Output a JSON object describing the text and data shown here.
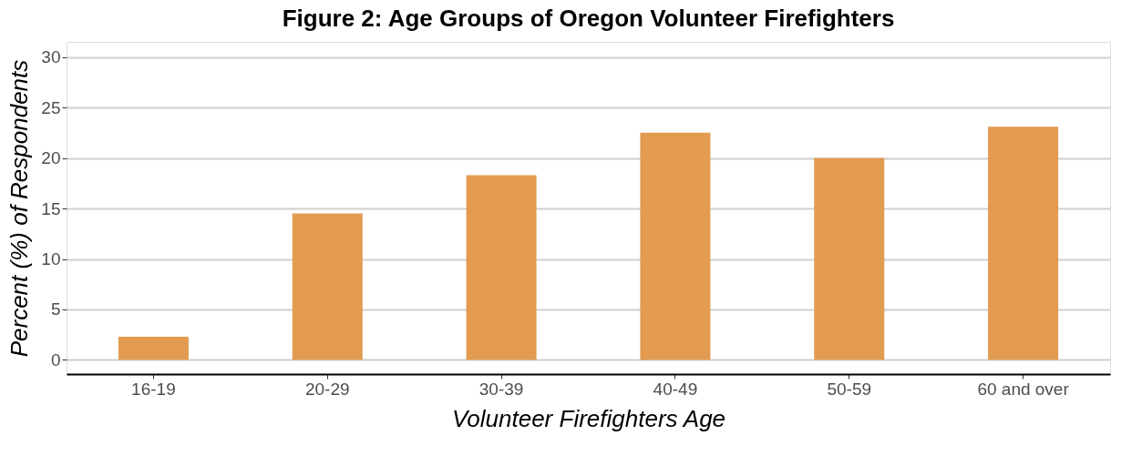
{
  "chart_data": {
    "type": "bar",
    "title": "Figure 2: Age Groups of Oregon Volunteer Firefighters",
    "xlabel": "Volunteer Firefighters Age",
    "ylabel": "Percent (%) of Respondents",
    "categories": [
      "16-19",
      "20-29",
      "30-39",
      "40-49",
      "50-59",
      "60 and over"
    ],
    "values": [
      2.3,
      14.5,
      18.3,
      22.5,
      20.0,
      23.1
    ],
    "color": "#e29b50",
    "ylim": [
      -1.4,
      31.5
    ],
    "yticks": [
      0,
      5,
      10,
      15,
      20,
      25,
      30
    ],
    "grid": "y"
  }
}
